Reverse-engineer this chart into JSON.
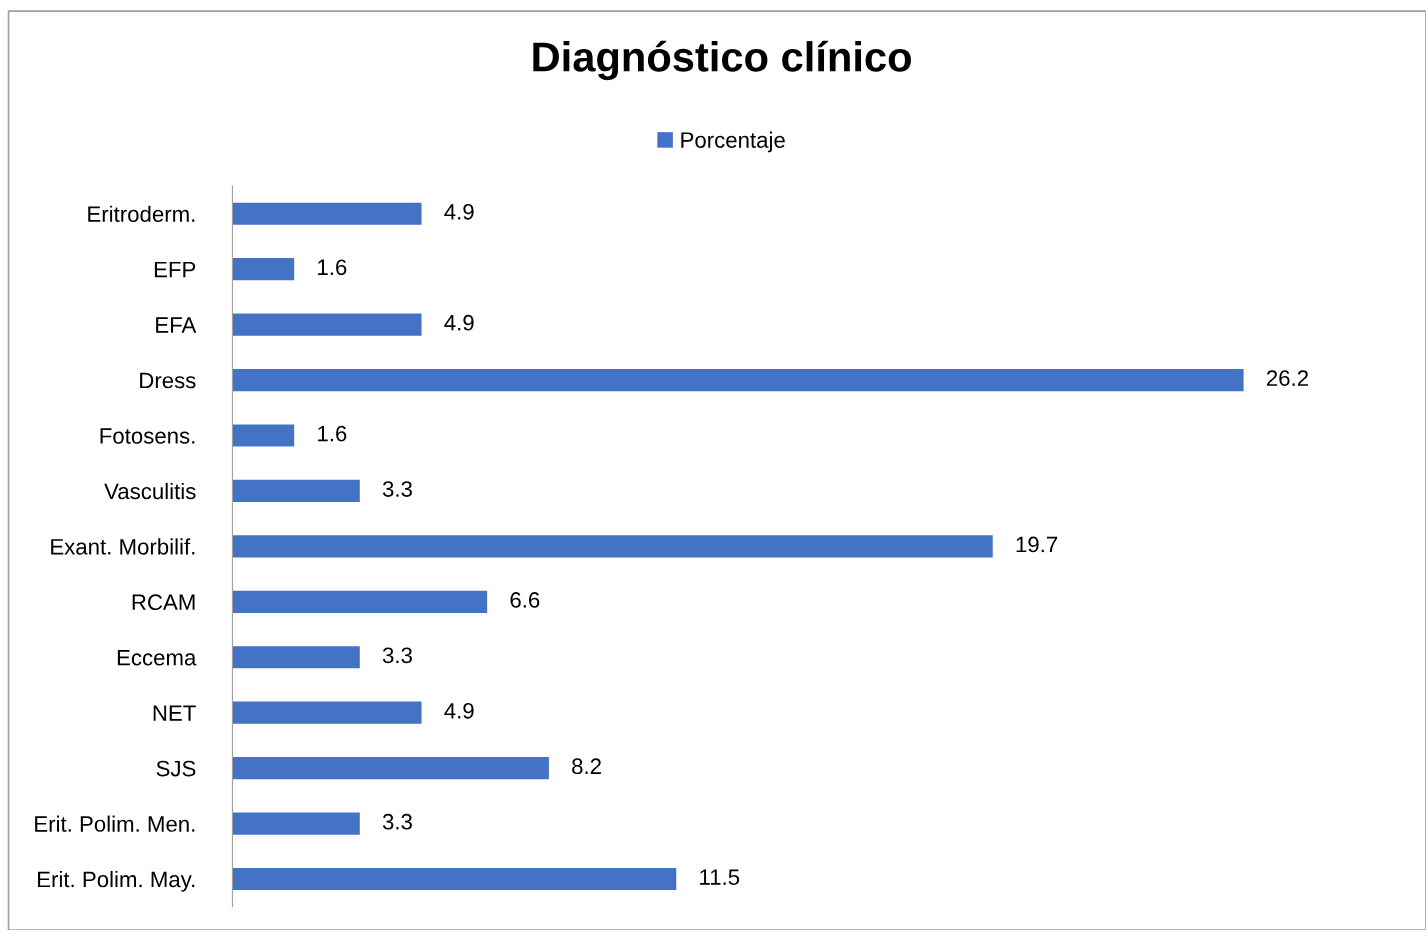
{
  "chart_data": {
    "type": "bar",
    "orientation": "horizontal",
    "title": "Diagnóstico clínico",
    "categories": [
      "Eritroderm.",
      "EFP",
      "EFA",
      "Dress",
      "Fotosens.",
      "Vasculitis",
      "Exant. Morbilif.",
      "RCAM",
      "Eccema",
      "NET",
      "SJS",
      "Erit. Polim. Men.",
      "Erit. Polim. May."
    ],
    "series": [
      {
        "name": "Porcentaje",
        "color": "#4472c4",
        "values": [
          4.9,
          1.6,
          4.9,
          26.2,
          1.6,
          3.3,
          19.7,
          6.6,
          3.3,
          4.9,
          8.2,
          3.3,
          11.5
        ]
      }
    ],
    "data_labels": true,
    "legend": "top",
    "grid": false
  }
}
